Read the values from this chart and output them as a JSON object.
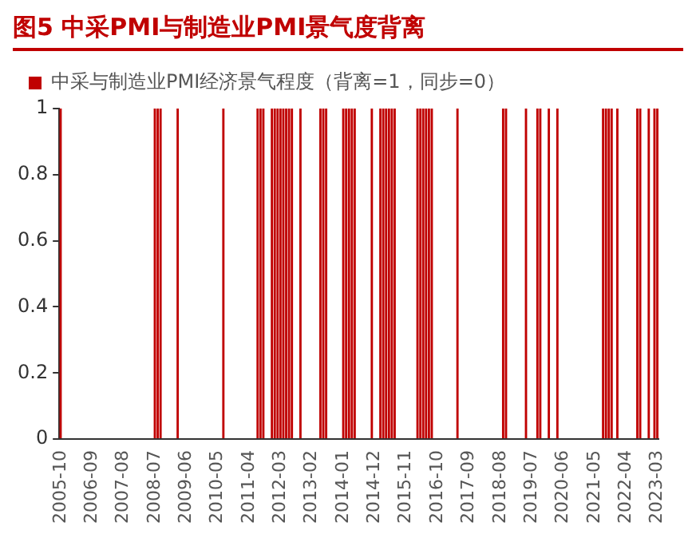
{
  "chart_data": {
    "type": "bar",
    "title": "图5 中采PMI与制造业PMI景气度背离",
    "categories": [
      "2005-10",
      null,
      null,
      null,
      null,
      null,
      null,
      null,
      null,
      null,
      null,
      "2006-09",
      null,
      null,
      null,
      null,
      null,
      null,
      null,
      null,
      null,
      null,
      "2007-08",
      null,
      null,
      null,
      null,
      null,
      null,
      null,
      null,
      null,
      null,
      "2008-07",
      null,
      null,
      null,
      null,
      null,
      null,
      null,
      null,
      null,
      null,
      "2009-06",
      null,
      null,
      null,
      null,
      null,
      null,
      null,
      null,
      null,
      null,
      "2010-05",
      null,
      null,
      null,
      null,
      null,
      null,
      null,
      null,
      null,
      null,
      "2011-04",
      null,
      null,
      null,
      null,
      null,
      null,
      null,
      null,
      null,
      null,
      "2012-03",
      null,
      null,
      null,
      null,
      null,
      null,
      null,
      null,
      null,
      null,
      "2013-02",
      null,
      null,
      null,
      null,
      null,
      null,
      null,
      null,
      null,
      null,
      "2014-01",
      null,
      null,
      null,
      null,
      null,
      null,
      null,
      null,
      null,
      null,
      "2014-12",
      null,
      null,
      null,
      null,
      null,
      null,
      null,
      null,
      null,
      null,
      "2015-11",
      null,
      null,
      null,
      null,
      null,
      null,
      null,
      null,
      null,
      null,
      "2016-10",
      null,
      null,
      null,
      null,
      null,
      null,
      null,
      null,
      null,
      null,
      "2017-09",
      null,
      null,
      null,
      null,
      null,
      null,
      null,
      null,
      null,
      null,
      "2018-08",
      null,
      null,
      null,
      null,
      null,
      null,
      null,
      null,
      null,
      null,
      "2019-07",
      null,
      null,
      null,
      null,
      null,
      null,
      null,
      null,
      null,
      null,
      "2020-06",
      null,
      null,
      null,
      null,
      null,
      null,
      null,
      null,
      null,
      null,
      "2021-05",
      null,
      null,
      null,
      null,
      null,
      null,
      null,
      null,
      null,
      null,
      "2022-04",
      null,
      null,
      null,
      null,
      null,
      null,
      null,
      null,
      null,
      null,
      "2023-03"
    ],
    "series": [
      {
        "name": "中采与制造业PMI经济景气程度（背离=1，同步=0）",
        "color": "#c00000",
        "values": [
          1,
          0,
          0,
          0,
          0,
          0,
          0,
          0,
          0,
          0,
          0,
          0,
          0,
          0,
          0,
          0,
          0,
          0,
          0,
          0,
          0,
          0,
          0,
          0,
          0,
          0,
          0,
          0,
          0,
          0,
          0,
          0,
          0,
          1,
          1,
          1,
          0,
          0,
          0,
          0,
          0,
          1,
          0,
          0,
          0,
          0,
          0,
          0,
          0,
          0,
          0,
          0,
          0,
          0,
          0,
          0,
          0,
          1,
          0,
          0,
          0,
          0,
          0,
          0,
          0,
          0,
          0,
          0,
          0,
          1,
          1,
          1,
          0,
          0,
          1,
          1,
          1,
          1,
          1,
          1,
          1,
          1,
          0,
          0,
          1,
          0,
          0,
          0,
          0,
          0,
          0,
          1,
          1,
          1,
          0,
          0,
          0,
          0,
          0,
          1,
          1,
          1,
          1,
          1,
          0,
          0,
          0,
          0,
          0,
          1,
          0,
          0,
          1,
          1,
          1,
          1,
          1,
          1,
          0,
          0,
          0,
          0,
          0,
          0,
          0,
          1,
          1,
          1,
          1,
          1,
          1,
          0,
          0,
          0,
          0,
          0,
          0,
          0,
          0,
          1,
          0,
          0,
          0,
          0,
          0,
          0,
          0,
          0,
          0,
          0,
          0,
          0,
          0,
          0,
          0,
          1,
          1,
          0,
          0,
          0,
          0,
          0,
          0,
          1,
          0,
          0,
          0,
          1,
          1,
          0,
          0,
          1,
          0,
          0,
          1,
          0,
          0,
          0,
          0,
          0,
          0,
          0,
          0,
          0,
          0,
          0,
          0,
          0,
          0,
          0,
          1,
          1,
          1,
          1,
          0,
          1,
          0,
          0,
          0,
          0,
          0,
          0,
          1,
          1,
          0,
          0,
          1,
          0,
          1,
          1
        ]
      }
    ],
    "ylim": [
      0,
      1
    ],
    "yticks": [
      0,
      0.2,
      0.4,
      0.6,
      0.8,
      1
    ],
    "grid": false,
    "legend": "top"
  }
}
